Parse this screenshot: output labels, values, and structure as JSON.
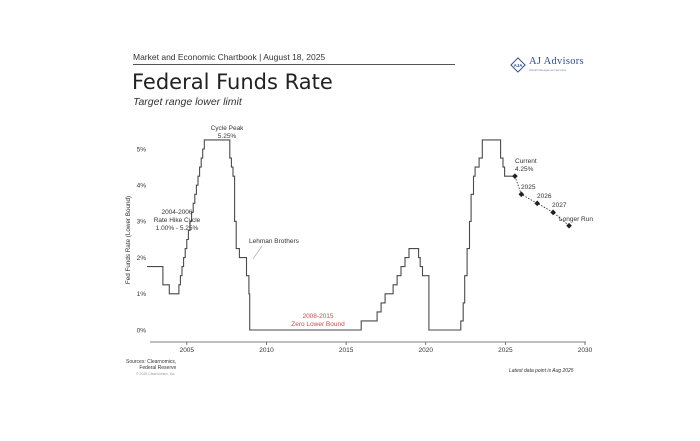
{
  "header": {
    "kicker": "Market and Economic Chartbook | August 18, 2025",
    "title": "Federal Funds Rate",
    "subtitle": "Target range lower limit"
  },
  "logo": {
    "name": "AJ Advisors",
    "tagline": "Wealth Management Services",
    "mark_text": "AJA"
  },
  "footer": {
    "sources": [
      "Sources: Clearnomics,",
      "Federal Reserve"
    ],
    "copyright": "© 2025 Clearnomics, Inc.",
    "note": "Latest data point is Aug 2025"
  },
  "colors": {
    "line": "#4a4a4a",
    "projection": "#222222",
    "zlb_label": "#c0504d",
    "axis": "#555555"
  },
  "chart_data": {
    "type": "line",
    "title": "",
    "ylabel": "Fed Funds Rate (Lower Bound)",
    "xlabel": "",
    "xlim": [
      2002.5,
      2030
    ],
    "ylim": [
      -0.25,
      5.6
    ],
    "x_ticks": [
      2005,
      2010,
      2015,
      2020,
      2025,
      2030
    ],
    "y_ticks": [
      0,
      1,
      2,
      3,
      4,
      5
    ],
    "y_tick_labels": [
      "0%",
      "1%",
      "2%",
      "3%",
      "4%",
      "5%"
    ],
    "grid": false,
    "series": [
      {
        "kind": "step",
        "x": [
          2002.5,
          2003.5,
          2003.9,
          2004.5,
          2004.6,
          2004.7,
          2004.8,
          2004.9,
          2005.0,
          2005.1,
          2005.2,
          2005.3,
          2005.4,
          2005.5,
          2005.6,
          2005.7,
          2005.8,
          2005.9,
          2006.0,
          2006.1,
          2006.2,
          2006.3,
          2006.4,
          2006.5,
          2007.7,
          2007.8,
          2007.9,
          2008.0,
          2008.1,
          2008.3,
          2008.75,
          2008.9,
          2008.95,
          2015.95,
          2016.95,
          2017.2,
          2017.45,
          2017.95,
          2018.2,
          2018.45,
          2018.7,
          2018.95,
          2019.55,
          2019.65,
          2019.8,
          2020.2,
          2022.2,
          2022.35,
          2022.45,
          2022.6,
          2022.75,
          2022.85,
          2023.0,
          2023.1,
          2023.35,
          2023.55,
          2024.7,
          2024.85,
          2024.95,
          2025.6
        ],
        "y": [
          1.75,
          1.25,
          1.0,
          1.25,
          1.5,
          1.75,
          2.0,
          2.25,
          2.5,
          2.75,
          3.0,
          3.25,
          3.5,
          3.75,
          4.0,
          4.25,
          4.5,
          4.75,
          5.0,
          5.25,
          5.25,
          5.25,
          5.25,
          5.25,
          4.75,
          4.5,
          4.25,
          3.0,
          2.25,
          2.0,
          1.5,
          1.0,
          0.0,
          0.25,
          0.5,
          0.75,
          1.0,
          1.25,
          1.5,
          1.75,
          2.0,
          2.25,
          2.0,
          1.75,
          1.5,
          0.0,
          0.25,
          0.75,
          1.5,
          2.25,
          3.0,
          3.75,
          4.25,
          4.5,
          4.75,
          5.25,
          4.75,
          4.5,
          4.25,
          4.25
        ]
      },
      {
        "kind": "projection",
        "labels": [
          "Current",
          "2025",
          "2026",
          "2027",
          "Longer Run"
        ],
        "x": [
          2025.6,
          2026.0,
          2027.0,
          2028.0,
          2029.0
        ],
        "y": [
          4.25,
          3.75,
          3.5,
          3.25,
          2.88
        ]
      }
    ],
    "annotations": [
      {
        "id": "cycle-peak",
        "lines": [
          "Cycle Peak",
          "5.25%"
        ]
      },
      {
        "id": "hike-cycle",
        "lines": [
          "2004-2006",
          "Rate Hike Cycle",
          "1.00% - 5.25%"
        ]
      },
      {
        "id": "lehman",
        "lines": [
          "Lehman Brothers"
        ]
      },
      {
        "id": "zlb",
        "lines": [
          "2008-2015",
          "Zero Lower Bound"
        ]
      },
      {
        "id": "current",
        "lines": [
          "Current",
          "4.25%"
        ]
      },
      {
        "id": "proj-2025",
        "lines": [
          "2025"
        ]
      },
      {
        "id": "proj-2026",
        "lines": [
          "2026"
        ]
      },
      {
        "id": "proj-2027",
        "lines": [
          "2027"
        ]
      },
      {
        "id": "longer-run",
        "lines": [
          "Longer Run"
        ]
      }
    ]
  }
}
